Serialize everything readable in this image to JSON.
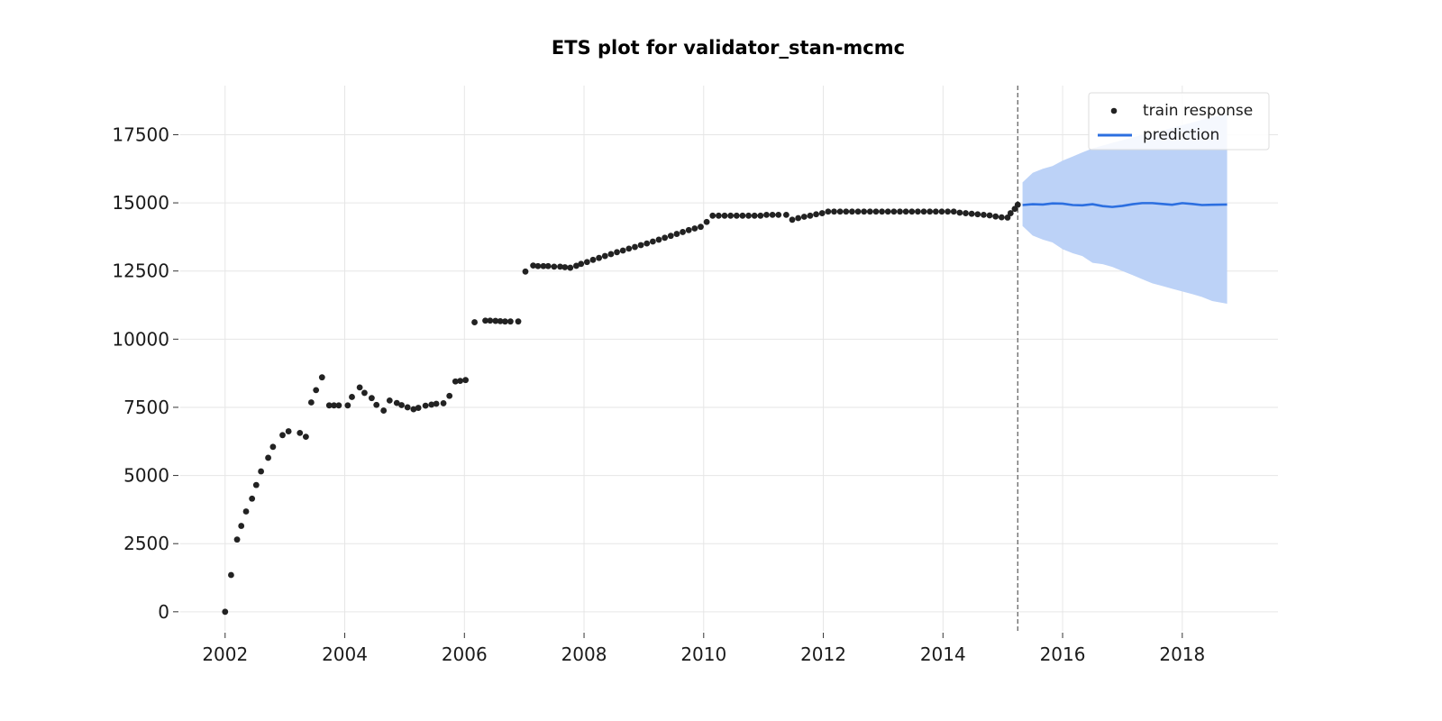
{
  "chart_data": {
    "type": "line",
    "title": "ETS plot for validator_stan-mcmc",
    "xlabel": "",
    "ylabel": "",
    "xlim": [
      2001.25,
      2019.6
    ],
    "ylim": [
      -700,
      19300
    ],
    "x_ticks": [
      2002,
      2004,
      2006,
      2008,
      2010,
      2012,
      2014,
      2016,
      2018
    ],
    "x_tick_labels": [
      "2002",
      "2004",
      "2006",
      "2008",
      "2010",
      "2012",
      "2014",
      "2016",
      "2018"
    ],
    "y_ticks": [
      0,
      2500,
      5000,
      7500,
      10000,
      12500,
      15000,
      17500
    ],
    "y_tick_labels": [
      "0",
      "2500",
      "5000",
      "7500",
      "10000",
      "12500",
      "15000",
      "17500"
    ],
    "grid": true,
    "legend": {
      "position": "top-right",
      "entries": [
        "train response",
        "prediction"
      ]
    },
    "train_end_marker": 2015.25,
    "colors": {
      "train": "#222222",
      "prediction": "#2c6fe0",
      "interval": "#bcd2f7",
      "divider": "#666666"
    },
    "series": [
      {
        "name": "train response",
        "kind": "scatter",
        "points": [
          [
            2002.0,
            0
          ],
          [
            2002.1,
            1350
          ],
          [
            2002.2,
            2650
          ],
          [
            2002.27,
            3150
          ],
          [
            2002.35,
            3680
          ],
          [
            2002.45,
            4150
          ],
          [
            2002.52,
            4650
          ],
          [
            2002.6,
            5150
          ],
          [
            2002.72,
            5650
          ],
          [
            2002.8,
            6050
          ],
          [
            2002.96,
            6480
          ],
          [
            2003.06,
            6620
          ],
          [
            2003.25,
            6560
          ],
          [
            2003.35,
            6420
          ],
          [
            2003.44,
            7680
          ],
          [
            2003.52,
            8130
          ],
          [
            2003.62,
            8600
          ],
          [
            2003.74,
            7570
          ],
          [
            2003.82,
            7570
          ],
          [
            2003.9,
            7570
          ],
          [
            2004.05,
            7570
          ],
          [
            2004.12,
            7880
          ],
          [
            2004.25,
            8230
          ],
          [
            2004.33,
            8030
          ],
          [
            2004.45,
            7840
          ],
          [
            2004.53,
            7590
          ],
          [
            2004.65,
            7380
          ],
          [
            2004.75,
            7750
          ],
          [
            2004.87,
            7660
          ],
          [
            2004.95,
            7580
          ],
          [
            2005.05,
            7500
          ],
          [
            2005.15,
            7430
          ],
          [
            2005.23,
            7480
          ],
          [
            2005.35,
            7560
          ],
          [
            2005.45,
            7600
          ],
          [
            2005.53,
            7630
          ],
          [
            2005.65,
            7650
          ],
          [
            2005.75,
            7920
          ],
          [
            2005.85,
            8450
          ],
          [
            2005.93,
            8470
          ],
          [
            2006.02,
            8500
          ],
          [
            2006.17,
            10620
          ],
          [
            2006.35,
            10680
          ],
          [
            2006.43,
            10680
          ],
          [
            2006.52,
            10670
          ],
          [
            2006.6,
            10660
          ],
          [
            2006.68,
            10650
          ],
          [
            2006.77,
            10650
          ],
          [
            2006.9,
            10650
          ],
          [
            2007.02,
            12480
          ],
          [
            2007.15,
            12700
          ],
          [
            2007.23,
            12680
          ],
          [
            2007.32,
            12680
          ],
          [
            2007.4,
            12680
          ],
          [
            2007.5,
            12660
          ],
          [
            2007.6,
            12660
          ],
          [
            2007.68,
            12640
          ],
          [
            2007.77,
            12620
          ],
          [
            2007.87,
            12690
          ],
          [
            2007.95,
            12760
          ],
          [
            2008.05,
            12830
          ],
          [
            2008.15,
            12910
          ],
          [
            2008.25,
            12980
          ],
          [
            2008.35,
            13050
          ],
          [
            2008.45,
            13120
          ],
          [
            2008.55,
            13190
          ],
          [
            2008.65,
            13250
          ],
          [
            2008.75,
            13320
          ],
          [
            2008.85,
            13380
          ],
          [
            2008.95,
            13450
          ],
          [
            2009.05,
            13510
          ],
          [
            2009.15,
            13580
          ],
          [
            2009.25,
            13650
          ],
          [
            2009.35,
            13720
          ],
          [
            2009.45,
            13790
          ],
          [
            2009.55,
            13860
          ],
          [
            2009.65,
            13930
          ],
          [
            2009.75,
            14000
          ],
          [
            2009.85,
            14060
          ],
          [
            2009.95,
            14120
          ],
          [
            2010.05,
            14300
          ],
          [
            2010.15,
            14530
          ],
          [
            2010.25,
            14530
          ],
          [
            2010.35,
            14530
          ],
          [
            2010.45,
            14530
          ],
          [
            2010.55,
            14530
          ],
          [
            2010.65,
            14530
          ],
          [
            2010.75,
            14530
          ],
          [
            2010.85,
            14530
          ],
          [
            2010.95,
            14530
          ],
          [
            2011.05,
            14560
          ],
          [
            2011.15,
            14560
          ],
          [
            2011.25,
            14560
          ],
          [
            2011.38,
            14560
          ],
          [
            2011.48,
            14380
          ],
          [
            2011.58,
            14440
          ],
          [
            2011.68,
            14490
          ],
          [
            2011.78,
            14530
          ],
          [
            2011.88,
            14580
          ],
          [
            2011.98,
            14620
          ],
          [
            2012.08,
            14680
          ],
          [
            2012.18,
            14680
          ],
          [
            2012.28,
            14680
          ],
          [
            2012.38,
            14680
          ],
          [
            2012.48,
            14680
          ],
          [
            2012.58,
            14680
          ],
          [
            2012.68,
            14680
          ],
          [
            2012.78,
            14680
          ],
          [
            2012.88,
            14680
          ],
          [
            2012.98,
            14680
          ],
          [
            2013.08,
            14680
          ],
          [
            2013.18,
            14680
          ],
          [
            2013.28,
            14680
          ],
          [
            2013.38,
            14680
          ],
          [
            2013.48,
            14680
          ],
          [
            2013.58,
            14680
          ],
          [
            2013.68,
            14680
          ],
          [
            2013.78,
            14680
          ],
          [
            2013.88,
            14680
          ],
          [
            2013.98,
            14680
          ],
          [
            2014.08,
            14680
          ],
          [
            2014.18,
            14680
          ],
          [
            2014.28,
            14640
          ],
          [
            2014.38,
            14620
          ],
          [
            2014.48,
            14600
          ],
          [
            2014.58,
            14580
          ],
          [
            2014.68,
            14560
          ],
          [
            2014.78,
            14540
          ],
          [
            2014.88,
            14500
          ],
          [
            2014.98,
            14470
          ],
          [
            2015.08,
            14460
          ],
          [
            2015.13,
            14620
          ],
          [
            2015.2,
            14780
          ],
          [
            2015.25,
            14930
          ]
        ]
      },
      {
        "name": "prediction",
        "kind": "line",
        "points": [
          [
            2015.33,
            14920
          ],
          [
            2015.5,
            14950
          ],
          [
            2015.67,
            14940
          ],
          [
            2015.83,
            14980
          ],
          [
            2016.0,
            14970
          ],
          [
            2016.17,
            14920
          ],
          [
            2016.33,
            14910
          ],
          [
            2016.5,
            14950
          ],
          [
            2016.67,
            14880
          ],
          [
            2016.83,
            14850
          ],
          [
            2017.0,
            14890
          ],
          [
            2017.17,
            14950
          ],
          [
            2017.33,
            14990
          ],
          [
            2017.5,
            14990
          ],
          [
            2017.67,
            14960
          ],
          [
            2017.83,
            14930
          ],
          [
            2018.0,
            14990
          ],
          [
            2018.17,
            14960
          ],
          [
            2018.33,
            14920
          ],
          [
            2018.5,
            14930
          ],
          [
            2018.75,
            14940
          ]
        ]
      },
      {
        "kind": "interval",
        "upper": [
          [
            2015.33,
            15750
          ],
          [
            2015.5,
            16100
          ],
          [
            2015.67,
            16250
          ],
          [
            2015.83,
            16350
          ],
          [
            2016.0,
            16550
          ],
          [
            2016.17,
            16700
          ],
          [
            2016.33,
            16850
          ],
          [
            2016.5,
            17000
          ],
          [
            2016.67,
            17100
          ],
          [
            2016.83,
            17200
          ],
          [
            2017.0,
            17300
          ],
          [
            2017.17,
            17400
          ],
          [
            2017.33,
            17500
          ],
          [
            2017.5,
            17550
          ],
          [
            2017.67,
            17650
          ],
          [
            2017.83,
            17750
          ],
          [
            2018.0,
            17850
          ],
          [
            2018.17,
            17950
          ],
          [
            2018.33,
            18050
          ],
          [
            2018.5,
            18150
          ],
          [
            2018.75,
            18250
          ]
        ],
        "lower": [
          [
            2015.33,
            14150
          ],
          [
            2015.5,
            13800
          ],
          [
            2015.67,
            13650
          ],
          [
            2015.83,
            13550
          ],
          [
            2016.0,
            13300
          ],
          [
            2016.17,
            13150
          ],
          [
            2016.33,
            13050
          ],
          [
            2016.5,
            12800
          ],
          [
            2016.67,
            12750
          ],
          [
            2016.83,
            12650
          ],
          [
            2017.0,
            12500
          ],
          [
            2017.17,
            12350
          ],
          [
            2017.33,
            12200
          ],
          [
            2017.5,
            12050
          ],
          [
            2017.67,
            11950
          ],
          [
            2017.83,
            11850
          ],
          [
            2018.0,
            11750
          ],
          [
            2018.17,
            11650
          ],
          [
            2018.33,
            11550
          ],
          [
            2018.5,
            11400
          ],
          [
            2018.75,
            11300
          ]
        ]
      }
    ]
  }
}
